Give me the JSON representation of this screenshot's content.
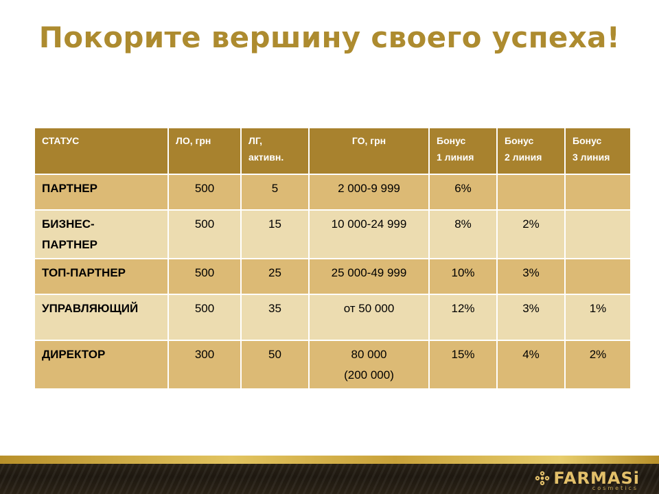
{
  "title": "Покорите вершину своего успеха!",
  "table": {
    "headers": [
      [
        "СТАТУС"
      ],
      [
        "ЛО, грн"
      ],
      [
        "ЛГ,",
        "активн."
      ],
      [
        "ГО, грн"
      ],
      [
        "Бонус",
        "1 линия"
      ],
      [
        "Бонус",
        "2 линия"
      ],
      [
        "Бонус",
        "3 линия"
      ]
    ],
    "rows": [
      {
        "status": [
          "ПАРТНЕР"
        ],
        "lo": "500",
        "lg": "5",
        "go": [
          "2 000-9 999"
        ],
        "b1": "6%",
        "b2": "",
        "b3": ""
      },
      {
        "status": [
          "БИЗНЕС-",
          "ПАРТНЕР"
        ],
        "lo": "500",
        "lg": "15",
        "go": [
          "10 000-24 999"
        ],
        "b1": "8%",
        "b2": "2%",
        "b3": ""
      },
      {
        "status": [
          "ТОП-ПАРТНЕР"
        ],
        "lo": "500",
        "lg": "25",
        "go": [
          "25 000-49 999"
        ],
        "b1": "10%",
        "b2": "3%",
        "b3": ""
      },
      {
        "status": [
          "УПРАВЛЯЮЩИЙ"
        ],
        "lo": "500",
        "lg": "35",
        "go": [
          "от 50 000"
        ],
        "b1": "12%",
        "b2": "3%",
        "b3": "1%"
      },
      {
        "status": [
          "ДИРЕКТОР"
        ],
        "lo": "300",
        "lg": "50",
        "go": [
          "80 000",
          "(200 000)"
        ],
        "b1": "15%",
        "b2": "4%",
        "b3": "2%"
      }
    ]
  },
  "footer": {
    "logo_text": "FARMASi",
    "logo_sub": "cosmetics",
    "logo_icon": "farmasi-flower-icon"
  },
  "colors": {
    "title": "#ad8b2f",
    "header_bg": "#a8822e",
    "row_dark": "#dcba75",
    "row_light": "#ecdcb0"
  }
}
